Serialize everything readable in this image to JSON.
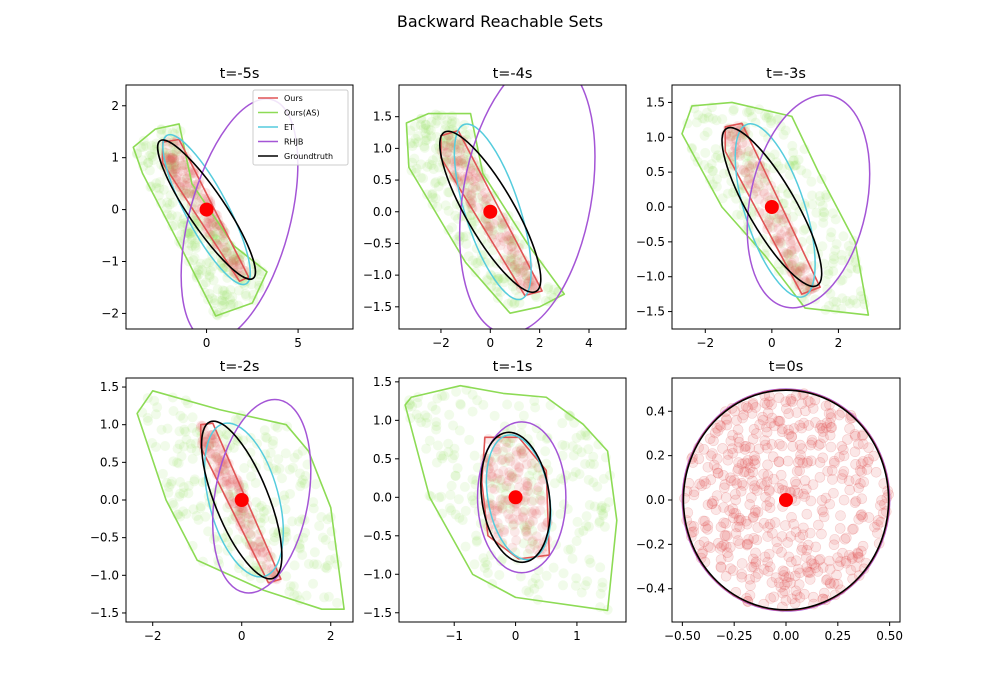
{
  "figure": {
    "suptitle": "Backward Reachable Sets"
  },
  "legend": [
    {
      "name": "Ours",
      "color": "#e05555"
    },
    {
      "name": "Ours(AS)",
      "color": "#8ddb55"
    },
    {
      "name": "ET",
      "color": "#55ccdd"
    },
    {
      "name": "RHJB",
      "color": "#a455d6"
    },
    {
      "name": "Groundtruth",
      "color": "#000000"
    }
  ],
  "chart_data": [
    {
      "type": "scatter",
      "title": "t=-5s",
      "xlim": [
        -4.4,
        8.0
      ],
      "ylim": [
        -2.3,
        2.4
      ],
      "xticks": [
        {
          "v": 0,
          "label": "0"
        },
        {
          "v": 5,
          "label": "5"
        }
      ],
      "yticks": [
        {
          "v": -2,
          "label": "−2"
        },
        {
          "v": -1,
          "label": "−1"
        },
        {
          "v": 0,
          "label": "0"
        },
        {
          "v": 1,
          "label": "1"
        },
        {
          "v": 2,
          "label": "2"
        }
      ],
      "center": [
        0,
        0
      ],
      "series": [
        {
          "name": "Ours(AS)",
          "shape": "polygon",
          "points": [
            [
              -4.0,
              1.2
            ],
            [
              -2.8,
              1.55
            ],
            [
              -1.5,
              1.65
            ],
            [
              -0.8,
              0.5
            ],
            [
              1.5,
              -0.7
            ],
            [
              3.3,
              -1.2
            ],
            [
              2.5,
              -1.8
            ],
            [
              0.5,
              -2.05
            ],
            [
              -1.0,
              -1.0
            ],
            [
              -3.5,
              0.7
            ]
          ]
        },
        {
          "name": "Ours",
          "shape": "polygon",
          "points": [
            [
              -2.4,
              1.3
            ],
            [
              -1.5,
              1.35
            ],
            [
              2.3,
              -1.3
            ],
            [
              1.8,
              -1.38
            ],
            [
              -2.4,
              0.9
            ]
          ]
        },
        {
          "name": "ET",
          "shape": "ellipse",
          "cx": 0.0,
          "cy": 0.0,
          "rx": 1.15,
          "ry": 1.62,
          "rot": -28
        },
        {
          "name": "RHJB",
          "shape": "ellipse",
          "cx": 1.8,
          "cy": -0.2,
          "rx": 2.75,
          "ry": 2.4,
          "rot": 15
        },
        {
          "name": "Groundtruth",
          "shape": "ellipse",
          "cx": 0.0,
          "cy": 0.0,
          "rx": 1.0,
          "ry": 1.6,
          "rot": -34
        }
      ]
    },
    {
      "type": "scatter",
      "title": "t=-4s",
      "xlim": [
        -3.7,
        5.5
      ],
      "ylim": [
        -1.85,
        2.0
      ],
      "xticks": [
        {
          "v": -2,
          "label": "−2"
        },
        {
          "v": 0,
          "label": "0"
        },
        {
          "v": 2,
          "label": "2"
        },
        {
          "v": 4,
          "label": "4"
        }
      ],
      "yticks": [
        {
          "v": -1.5,
          "label": "−1.5"
        },
        {
          "v": -1.0,
          "label": "−1.0"
        },
        {
          "v": -0.5,
          "label": "−0.5"
        },
        {
          "v": 0.0,
          "label": "0.0"
        },
        {
          "v": 0.5,
          "label": "0.5"
        },
        {
          "v": 1.0,
          "label": "1.0"
        },
        {
          "v": 1.5,
          "label": "1.5"
        }
      ],
      "center": [
        0,
        0
      ],
      "series": [
        {
          "name": "Ours(AS)",
          "shape": "polygon",
          "points": [
            [
              -3.4,
              1.4
            ],
            [
              -2.5,
              1.55
            ],
            [
              -0.8,
              1.55
            ],
            [
              -0.3,
              0.6
            ],
            [
              1.5,
              -0.5
            ],
            [
              3.0,
              -1.3
            ],
            [
              2.0,
              -1.5
            ],
            [
              0.8,
              -1.6
            ],
            [
              -1.0,
              -0.8
            ],
            [
              -3.3,
              0.7
            ]
          ]
        },
        {
          "name": "Ours",
          "shape": "polygon",
          "points": [
            [
              -2.0,
              1.2
            ],
            [
              -1.3,
              1.28
            ],
            [
              2.1,
              -1.25
            ],
            [
              1.4,
              -1.32
            ],
            [
              -2.0,
              0.85
            ]
          ]
        },
        {
          "name": "ET",
          "shape": "ellipse",
          "cx": 0.1,
          "cy": 0.0,
          "rx": 1.1,
          "ry": 1.45,
          "rot": -18
        },
        {
          "name": "RHJB",
          "shape": "ellipse",
          "cx": 1.5,
          "cy": 0.25,
          "rx": 2.6,
          "ry": 2.2,
          "rot": 10
        },
        {
          "name": "Groundtruth",
          "shape": "ellipse",
          "cx": 0.0,
          "cy": 0.0,
          "rx": 0.98,
          "ry": 1.45,
          "rot": -30
        }
      ]
    },
    {
      "type": "scatter",
      "title": "t=-3s",
      "xlim": [
        -3.0,
        3.85
      ],
      "ylim": [
        -1.75,
        1.75
      ],
      "xticks": [
        {
          "v": -2,
          "label": "−2"
        },
        {
          "v": 0,
          "label": "0"
        },
        {
          "v": 2,
          "label": "2"
        }
      ],
      "yticks": [
        {
          "v": -1.5,
          "label": "−1.5"
        },
        {
          "v": -1.0,
          "label": "−1.0"
        },
        {
          "v": -0.5,
          "label": "−0.5"
        },
        {
          "v": 0.0,
          "label": "0.0"
        },
        {
          "v": 0.5,
          "label": "0.5"
        },
        {
          "v": 1.0,
          "label": "1.0"
        },
        {
          "v": 1.5,
          "label": "1.5"
        }
      ],
      "center": [
        0,
        0
      ],
      "series": [
        {
          "name": "Ours(AS)",
          "shape": "polygon",
          "points": [
            [
              -2.7,
              1.05
            ],
            [
              -2.4,
              1.45
            ],
            [
              -1.2,
              1.5
            ],
            [
              0.6,
              1.3
            ],
            [
              1.4,
              0.5
            ],
            [
              2.5,
              -0.5
            ],
            [
              2.9,
              -1.55
            ],
            [
              1.0,
              -1.45
            ],
            [
              -0.2,
              -0.7
            ],
            [
              -1.5,
              0.0
            ]
          ]
        },
        {
          "name": "Ours",
          "shape": "polygon",
          "points": [
            [
              -1.4,
              1.15
            ],
            [
              -0.9,
              1.2
            ],
            [
              1.45,
              -1.15
            ],
            [
              0.9,
              -1.25
            ],
            [
              -1.4,
              0.8
            ]
          ]
        },
        {
          "name": "ET",
          "shape": "ellipse",
          "cx": 0.1,
          "cy": -0.05,
          "rx": 0.9,
          "ry": 1.3,
          "rot": -18
        },
        {
          "name": "RHJB",
          "shape": "ellipse",
          "cx": 1.1,
          "cy": 0.08,
          "rx": 1.75,
          "ry": 1.55,
          "rot": 12
        },
        {
          "name": "Groundtruth",
          "shape": "ellipse",
          "cx": 0.0,
          "cy": 0.0,
          "rx": 0.72,
          "ry": 1.3,
          "rot": -30
        }
      ]
    },
    {
      "type": "scatter",
      "title": "t=-2s",
      "xlim": [
        -2.6,
        2.5
      ],
      "ylim": [
        -1.62,
        1.62
      ],
      "xticks": [
        {
          "v": -2,
          "label": "−2"
        },
        {
          "v": 0,
          "label": "0"
        },
        {
          "v": 2,
          "label": "2"
        }
      ],
      "yticks": [
        {
          "v": -1.5,
          "label": "−1.5"
        },
        {
          "v": -1.0,
          "label": "−1.0"
        },
        {
          "v": -0.5,
          "label": "−0.5"
        },
        {
          "v": 0.0,
          "label": "0.0"
        },
        {
          "v": 0.5,
          "label": "0.5"
        },
        {
          "v": 1.0,
          "label": "1.0"
        },
        {
          "v": 1.5,
          "label": "1.5"
        }
      ],
      "center": [
        0,
        0
      ],
      "series": [
        {
          "name": "Ours(AS)",
          "shape": "polygon",
          "points": [
            [
              -2.35,
              1.15
            ],
            [
              -2.0,
              1.45
            ],
            [
              -0.5,
              1.2
            ],
            [
              1.0,
              1.0
            ],
            [
              1.5,
              0.65
            ],
            [
              2.0,
              -0.1
            ],
            [
              2.3,
              -1.45
            ],
            [
              1.8,
              -1.45
            ],
            [
              0.5,
              -1.2
            ],
            [
              -1.0,
              -0.8
            ],
            [
              -1.7,
              0.0
            ]
          ]
        },
        {
          "name": "Ours",
          "shape": "polygon",
          "points": [
            [
              -0.92,
              1.0
            ],
            [
              -0.65,
              1.02
            ],
            [
              0.88,
              -1.05
            ],
            [
              0.6,
              -1.1
            ],
            [
              -0.92,
              0.7
            ]
          ]
        },
        {
          "name": "ET",
          "shape": "ellipse",
          "cx": 0.05,
          "cy": 0.0,
          "rx": 0.78,
          "ry": 1.05,
          "rot": -15
        },
        {
          "name": "RHJB",
          "shape": "ellipse",
          "cx": 0.45,
          "cy": 0.05,
          "rx": 1.05,
          "ry": 1.3,
          "rot": 10
        },
        {
          "name": "Groundtruth",
          "shape": "ellipse",
          "cx": 0.0,
          "cy": 0.0,
          "rx": 0.6,
          "ry": 1.12,
          "rot": -22
        }
      ]
    },
    {
      "type": "scatter",
      "title": "t=-1s",
      "xlim": [
        -1.9,
        1.8
      ],
      "ylim": [
        -1.62,
        1.55
      ],
      "xticks": [
        {
          "v": -1,
          "label": "−1"
        },
        {
          "v": 0,
          "label": "0"
        },
        {
          "v": 1,
          "label": "1"
        }
      ],
      "yticks": [
        {
          "v": -1.5,
          "label": "−1.5"
        },
        {
          "v": -1.0,
          "label": "−1.0"
        },
        {
          "v": -0.5,
          "label": "−0.5"
        },
        {
          "v": 0.0,
          "label": "0.0"
        },
        {
          "v": 0.5,
          "label": "0.5"
        },
        {
          "v": 1.0,
          "label": "1.0"
        },
        {
          "v": 1.5,
          "label": "1.5"
        }
      ],
      "center": [
        0,
        0
      ],
      "series": [
        {
          "name": "Ours(AS)",
          "shape": "polygon",
          "points": [
            [
              -1.8,
              1.2
            ],
            [
              -1.7,
              1.3
            ],
            [
              -0.9,
              1.45
            ],
            [
              -0.2,
              1.35
            ],
            [
              0.5,
              1.3
            ],
            [
              1.1,
              0.95
            ],
            [
              1.5,
              0.6
            ],
            [
              1.65,
              -0.3
            ],
            [
              1.5,
              -1.47
            ],
            [
              0.0,
              -1.3
            ],
            [
              -0.7,
              -1.0
            ],
            [
              -1.4,
              0.0
            ]
          ]
        },
        {
          "name": "Ours",
          "shape": "polygon",
          "points": [
            [
              -0.5,
              0.78
            ],
            [
              0.05,
              0.78
            ],
            [
              0.5,
              0.35
            ],
            [
              0.55,
              -0.75
            ],
            [
              0.05,
              -0.8
            ],
            [
              -0.45,
              -0.5
            ],
            [
              -0.55,
              0.2
            ]
          ]
        },
        {
          "name": "ET",
          "shape": "ellipse",
          "cx": 0.05,
          "cy": 0.0,
          "rx": 0.5,
          "ry": 0.82,
          "rot": -10
        },
        {
          "name": "RHJB",
          "shape": "ellipse",
          "cx": 0.1,
          "cy": 0.0,
          "rx": 0.72,
          "ry": 0.98,
          "rot": 0
        },
        {
          "name": "Groundtruth",
          "shape": "ellipse",
          "cx": 0.0,
          "cy": 0.0,
          "rx": 0.55,
          "ry": 0.85,
          "rot": -8
        }
      ]
    },
    {
      "type": "scatter",
      "title": "t=0s",
      "xlim": [
        -0.55,
        0.55
      ],
      "ylim": [
        -0.55,
        0.55
      ],
      "xticks": [
        {
          "v": -0.5,
          "label": "−0.50"
        },
        {
          "v": -0.25,
          "label": "−0.25"
        },
        {
          "v": 0.0,
          "label": "0.00"
        },
        {
          "v": 0.25,
          "label": "0.25"
        },
        {
          "v": 0.5,
          "label": "0.50"
        }
      ],
      "yticks": [
        {
          "v": -0.4,
          "label": "−0.4"
        },
        {
          "v": -0.2,
          "label": "−0.2"
        },
        {
          "v": 0.0,
          "label": "0.0"
        },
        {
          "v": 0.2,
          "label": "0.2"
        },
        {
          "v": 0.4,
          "label": "0.4"
        }
      ],
      "center": [
        0,
        0
      ],
      "series": [
        {
          "name": "RHJB",
          "shape": "ellipse",
          "cx": 0.0,
          "cy": 0.0,
          "rx": 0.5,
          "ry": 0.5,
          "rot": 0
        },
        {
          "name": "Ours",
          "shape": "ellipse",
          "cx": 0.0,
          "cy": 0.0,
          "rx": 0.497,
          "ry": 0.497,
          "rot": 0
        },
        {
          "name": "Groundtruth",
          "shape": "ellipse",
          "cx": 0.0,
          "cy": 0.0,
          "rx": 0.495,
          "ry": 0.495,
          "rot": 0
        }
      ]
    }
  ]
}
